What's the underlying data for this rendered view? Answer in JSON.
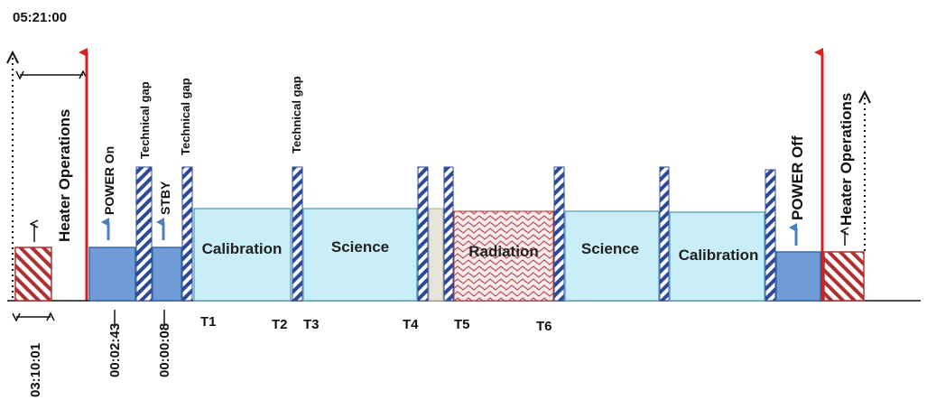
{
  "timestamp_top": "05:21:00",
  "labels": {
    "heater_operations_left": "Heater Operations",
    "heater_operations_right": "Heater Operations",
    "power_on": "POWER On",
    "power_off": "POWER Off",
    "stby": "STBY",
    "technical_gap_1": "Technical gap",
    "technical_gap_2": "Technical gap",
    "technical_gap_3": "Technical gap"
  },
  "blocks": {
    "calibration_1": "Calibration",
    "science_1": "Science",
    "radiation": "Radiation",
    "science_2": "Science",
    "calibration_2": "Calibration"
  },
  "time_marks": {
    "t1": "T1",
    "t2": "T2",
    "t3": "T3",
    "t4": "T4",
    "t5": "T5",
    "t6": "T6"
  },
  "durations": {
    "heater_left": "03:10:01",
    "power_on": "00:02:43",
    "stby": "00:00:08"
  },
  "colors": {
    "heater_fill": "#b03030",
    "power_fill": "#6f9bd6",
    "block_fill": "#c9eef8",
    "gap_stripe": "#2d4a9a",
    "red_arrow": "#d42020",
    "blue_arrow": "#4a7fc0"
  },
  "icons": [
    "red-up-arrow",
    "blue-up-arrow",
    "black-up-arrow",
    "double-headed-arrow",
    "dotted-arrow"
  ]
}
